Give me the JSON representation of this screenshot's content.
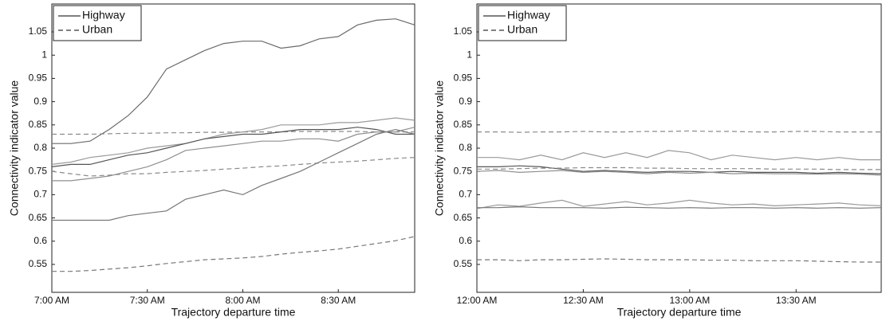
{
  "chart_data": [
    {
      "type": "line",
      "xlabel": "Trajectory departure time",
      "ylabel": "Connectivity indicator value",
      "x": [
        0,
        6,
        12,
        18,
        24,
        30,
        36,
        42,
        48,
        54,
        60,
        66,
        72,
        78,
        84,
        90,
        96,
        102,
        108,
        114
      ],
      "xlim": [
        0,
        114
      ],
      "xticks": [
        {
          "value": 0,
          "label": "7:00 AM"
        },
        {
          "value": 30,
          "label": "7:30 AM"
        },
        {
          "value": 60,
          "label": "8:00 AM"
        },
        {
          "value": 90,
          "label": "8:30 AM"
        }
      ],
      "ylim": [
        0.49,
        1.11
      ],
      "yticks": [
        0.55,
        0.6,
        0.65,
        0.7,
        0.75,
        0.8,
        0.85,
        0.9,
        0.95,
        1,
        1.05
      ],
      "grid": false,
      "legend": "upper left",
      "series": [
        {
          "name": "Highway",
          "color": "#6b6b6b",
          "dash": "solid",
          "values": [
            0.81,
            0.81,
            0.815,
            0.84,
            0.87,
            0.91,
            0.97,
            0.99,
            1.01,
            1.025,
            1.03,
            1.03,
            1.015,
            1.02,
            1.035,
            1.04,
            1.065,
            1.075,
            1.078,
            1.065
          ]
        },
        {
          "name": "Urban",
          "color": "#8a8a8a",
          "dash": "dashed",
          "values": [
            0.83,
            0.83,
            0.83,
            0.831,
            0.832,
            0.832,
            0.833,
            0.833,
            0.834,
            0.834,
            0.835,
            0.835,
            0.835,
            0.836,
            0.836,
            0.836,
            0.836,
            0.835,
            0.835,
            0.835
          ]
        },
        {
          "name": "Highway",
          "color": "#9a9a9a",
          "dash": "solid",
          "values": [
            0.765,
            0.77,
            0.78,
            0.785,
            0.79,
            0.8,
            0.805,
            0.81,
            0.82,
            0.83,
            0.835,
            0.84,
            0.85,
            0.85,
            0.85,
            0.855,
            0.855,
            0.86,
            0.865,
            0.86
          ]
        },
        {
          "name": "Highway",
          "color": "#555555",
          "dash": "solid",
          "values": [
            0.76,
            0.765,
            0.765,
            0.775,
            0.785,
            0.79,
            0.8,
            0.81,
            0.82,
            0.825,
            0.83,
            0.83,
            0.835,
            0.84,
            0.84,
            0.84,
            0.845,
            0.84,
            0.83,
            0.83
          ]
        },
        {
          "name": "Highway",
          "color": "#8f8f8f",
          "dash": "solid",
          "values": [
            0.73,
            0.73,
            0.735,
            0.74,
            0.75,
            0.76,
            0.775,
            0.795,
            0.8,
            0.805,
            0.81,
            0.815,
            0.815,
            0.82,
            0.82,
            0.815,
            0.83,
            0.835,
            0.835,
            0.845
          ]
        },
        {
          "name": "Urban",
          "color": "#8a8a8a",
          "dash": "dashed",
          "values": [
            0.75,
            0.745,
            0.74,
            0.742,
            0.745,
            0.745,
            0.748,
            0.75,
            0.752,
            0.755,
            0.757,
            0.76,
            0.762,
            0.765,
            0.768,
            0.77,
            0.772,
            0.775,
            0.778,
            0.78
          ]
        },
        {
          "name": "Highway",
          "color": "#777777",
          "dash": "solid",
          "values": [
            0.645,
            0.645,
            0.645,
            0.645,
            0.655,
            0.66,
            0.665,
            0.69,
            0.7,
            0.71,
            0.7,
            0.72,
            0.735,
            0.75,
            0.77,
            0.79,
            0.81,
            0.83,
            0.84,
            0.83
          ]
        },
        {
          "name": "Urban",
          "color": "#777777",
          "dash": "dashed",
          "values": [
            0.535,
            0.535,
            0.537,
            0.54,
            0.543,
            0.547,
            0.552,
            0.556,
            0.56,
            0.562,
            0.564,
            0.567,
            0.572,
            0.576,
            0.579,
            0.583,
            0.589,
            0.595,
            0.601,
            0.61
          ]
        }
      ]
    },
    {
      "type": "line",
      "xlabel": "Trajectory departure time",
      "ylabel": "Connectivity indicator value",
      "x": [
        0,
        6,
        12,
        18,
        24,
        30,
        36,
        42,
        48,
        54,
        60,
        66,
        72,
        78,
        84,
        90,
        96,
        102,
        108,
        114
      ],
      "xlim": [
        0,
        114
      ],
      "xticks": [
        {
          "value": 0,
          "label": "12:00 AM"
        },
        {
          "value": 30,
          "label": "12:30 AM"
        },
        {
          "value": 60,
          "label": "13:00 AM"
        },
        {
          "value": 90,
          "label": "13:30 AM"
        }
      ],
      "ylim": [
        0.49,
        1.11
      ],
      "yticks": [
        0.55,
        0.6,
        0.65,
        0.7,
        0.75,
        0.8,
        0.85,
        0.9,
        0.95,
        1,
        1.05
      ],
      "grid": false,
      "legend": "upper left",
      "series": [
        {
          "name": "Highway",
          "color": "#9a9a9a",
          "dash": "solid",
          "values": [
            0.78,
            0.78,
            0.775,
            0.785,
            0.775,
            0.79,
            0.78,
            0.79,
            0.78,
            0.795,
            0.79,
            0.775,
            0.785,
            0.78,
            0.775,
            0.78,
            0.775,
            0.78,
            0.775,
            0.775
          ]
        },
        {
          "name": "Urban",
          "color": "#8a8a8a",
          "dash": "dashed",
          "values": [
            0.835,
            0.835,
            0.834,
            0.835,
            0.835,
            0.836,
            0.835,
            0.835,
            0.836,
            0.836,
            0.837,
            0.836,
            0.836,
            0.835,
            0.835,
            0.836,
            0.836,
            0.835,
            0.835,
            0.835
          ]
        },
        {
          "name": "Highway",
          "color": "#555555",
          "dash": "solid",
          "values": [
            0.76,
            0.76,
            0.762,
            0.76,
            0.755,
            0.75,
            0.752,
            0.75,
            0.748,
            0.75,
            0.75,
            0.748,
            0.75,
            0.748,
            0.748,
            0.748,
            0.746,
            0.748,
            0.746,
            0.745
          ]
        },
        {
          "name": "Urban",
          "color": "#8a8a8a",
          "dash": "dashed",
          "values": [
            0.755,
            0.755,
            0.756,
            0.757,
            0.757,
            0.758,
            0.758,
            0.758,
            0.757,
            0.757,
            0.756,
            0.756,
            0.756,
            0.756,
            0.755,
            0.755,
            0.755,
            0.754,
            0.754,
            0.754
          ]
        },
        {
          "name": "Highway",
          "color": "#8f8f8f",
          "dash": "solid",
          "values": [
            0.75,
            0.752,
            0.748,
            0.75,
            0.752,
            0.748,
            0.75,
            0.748,
            0.745,
            0.748,
            0.746,
            0.748,
            0.745,
            0.746,
            0.745,
            0.745,
            0.744,
            0.745,
            0.744,
            0.742
          ]
        },
        {
          "name": "Highway",
          "color": "#999999",
          "dash": "solid",
          "values": [
            0.67,
            0.678,
            0.675,
            0.682,
            0.688,
            0.675,
            0.68,
            0.685,
            0.678,
            0.682,
            0.688,
            0.682,
            0.678,
            0.68,
            0.676,
            0.678,
            0.68,
            0.682,
            0.678,
            0.676
          ]
        },
        {
          "name": "Highway",
          "color": "#777777",
          "dash": "solid",
          "values": [
            0.672,
            0.672,
            0.674,
            0.672,
            0.672,
            0.672,
            0.671,
            0.673,
            0.672,
            0.671,
            0.672,
            0.671,
            0.672,
            0.672,
            0.671,
            0.672,
            0.671,
            0.672,
            0.671,
            0.672
          ]
        },
        {
          "name": "Urban",
          "color": "#777777",
          "dash": "dashed",
          "values": [
            0.56,
            0.56,
            0.558,
            0.56,
            0.56,
            0.561,
            0.562,
            0.561,
            0.56,
            0.56,
            0.56,
            0.559,
            0.559,
            0.558,
            0.558,
            0.558,
            0.557,
            0.556,
            0.555,
            0.555
          ]
        }
      ]
    }
  ]
}
